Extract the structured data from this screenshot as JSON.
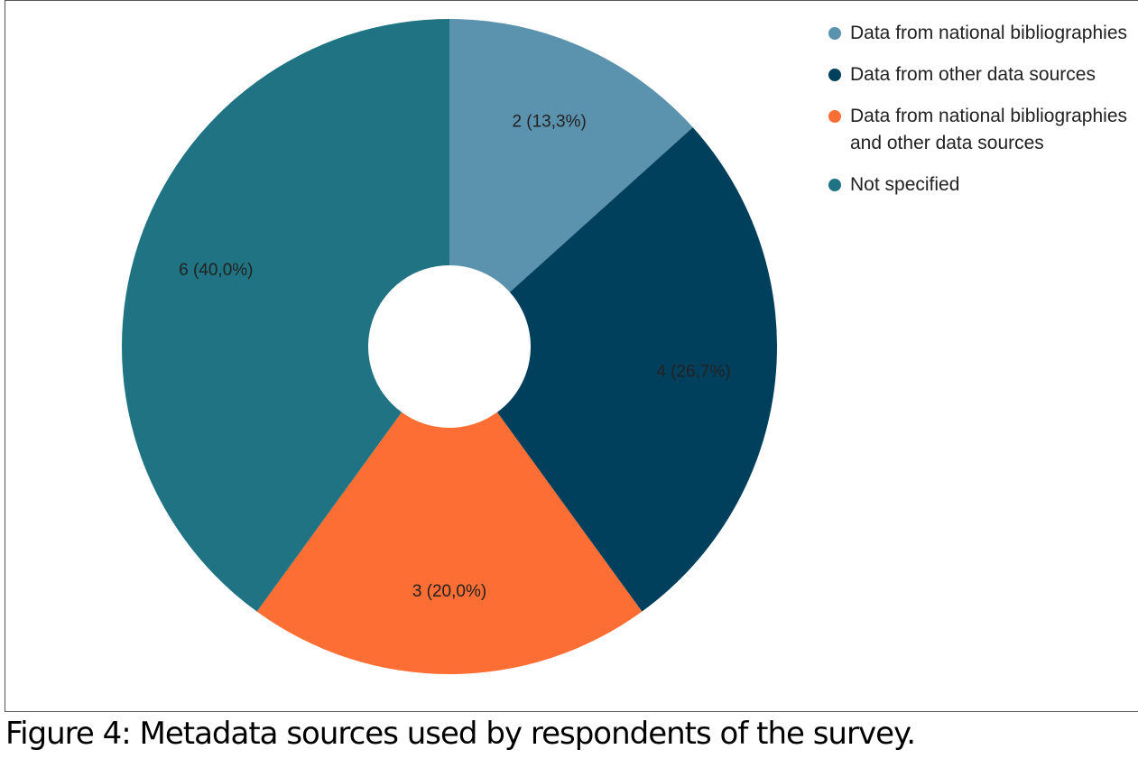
{
  "chart_data": {
    "type": "pie",
    "caption": "Figure 4: Metadata sources used by respondents of the survey.",
    "categories": [
      "Data from national bibliographies",
      "Data from other data sources",
      "Data from national bibliographies and other data sources",
      "Not specified"
    ],
    "values": [
      2,
      4,
      3,
      6
    ],
    "value_labels": [
      "2 (13,3%)",
      "4 (26,7%)",
      "3 (20,0%)",
      "6 (40,0%)"
    ],
    "colors": [
      "#5b92ae",
      "#00405d",
      "#fd6e34",
      "#1f7382"
    ],
    "legend": "right"
  }
}
